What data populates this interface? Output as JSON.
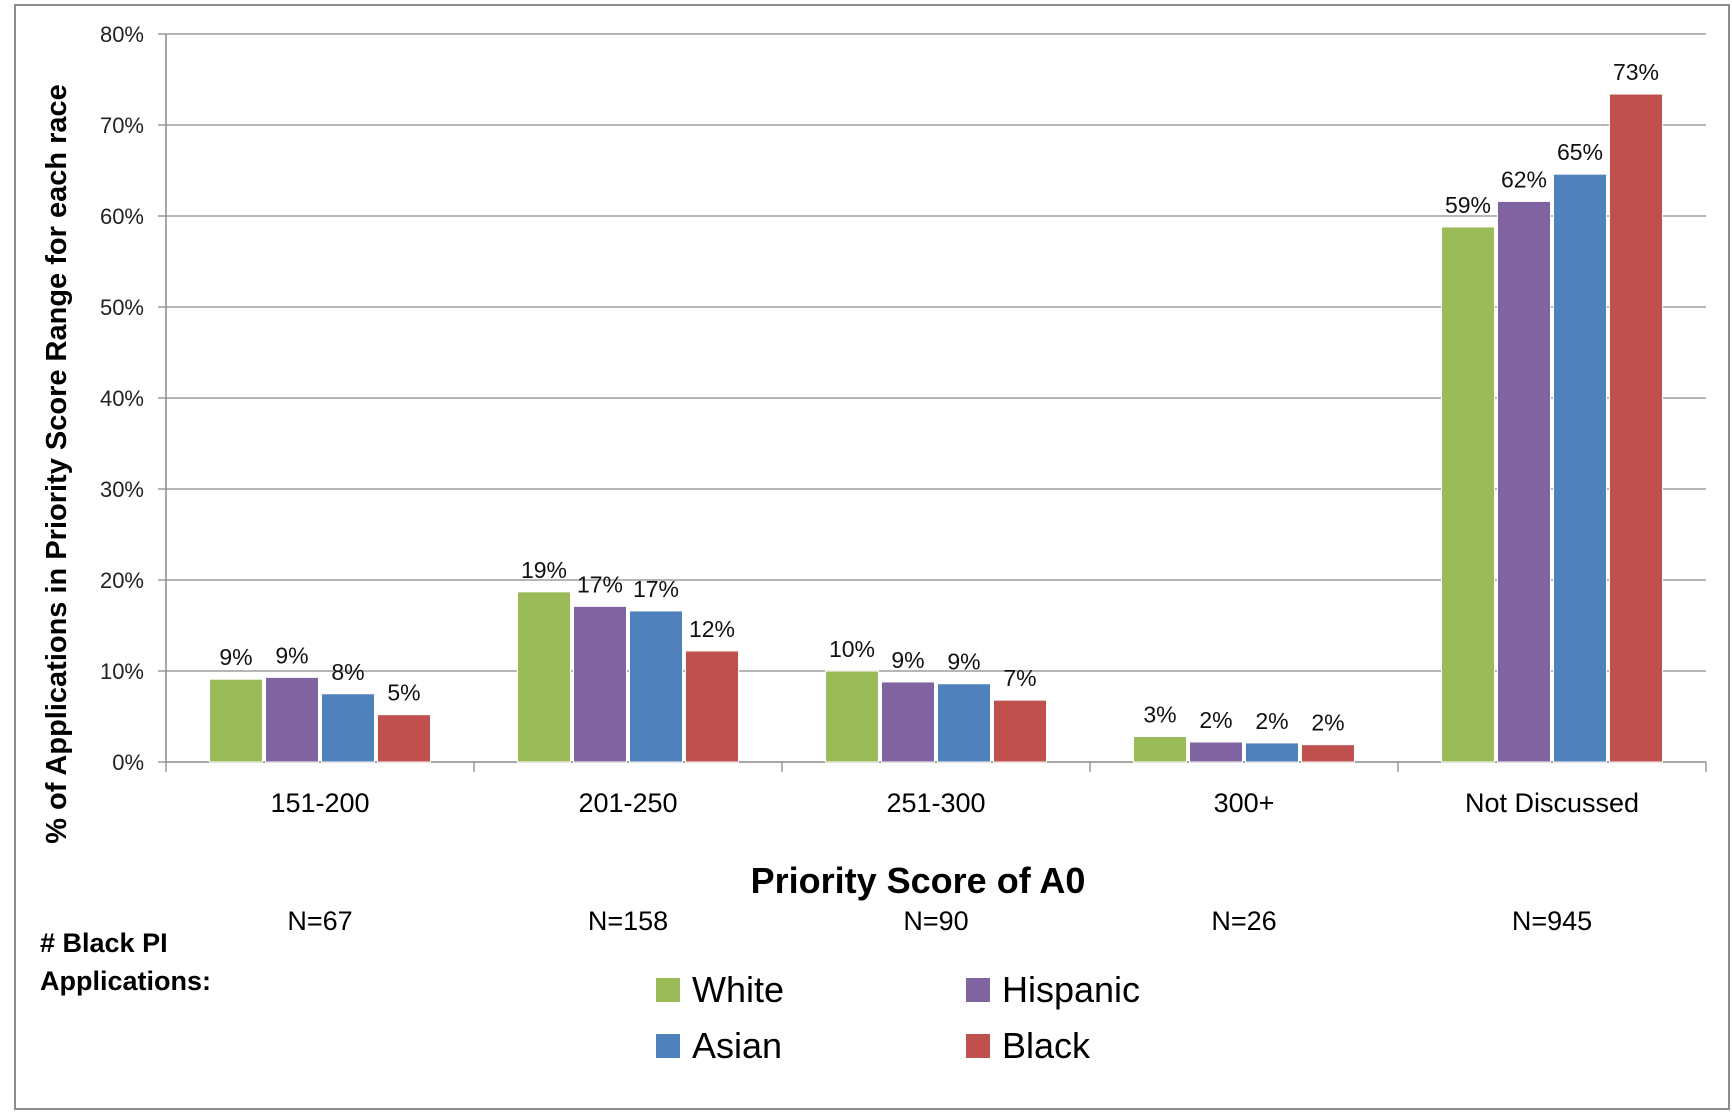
{
  "chart_data": {
    "type": "bar",
    "xlabel": "Priority Score of A0",
    "ylabel": "% of Applications  in Priority Score Range for each race",
    "ylim": [
      0,
      80
    ],
    "yticks": [
      "0%",
      "10%",
      "20%",
      "30%",
      "40%",
      "50%",
      "60%",
      "70%",
      "80%"
    ],
    "categories": [
      "151-200",
      "201-250",
      "251-300",
      "300+",
      "Not Discussed"
    ],
    "series": [
      {
        "name": "White",
        "color": "#9bbb59",
        "values": [
          9.1,
          18.7,
          10.0,
          2.8,
          58.8
        ],
        "labels": [
          "9%",
          "19%",
          "10%",
          "3%",
          "59%"
        ]
      },
      {
        "name": "Hispanic",
        "color": "#8064a2",
        "values": [
          9.3,
          17.1,
          8.8,
          2.2,
          61.6
        ],
        "labels": [
          "9%",
          "17%",
          "9%",
          "2%",
          "62%"
        ]
      },
      {
        "name": "Asian",
        "color": "#4f81bd",
        "values": [
          7.5,
          16.6,
          8.6,
          2.1,
          64.6
        ],
        "labels": [
          "8%",
          "17%",
          "9%",
          "2%",
          "65%"
        ]
      },
      {
        "name": "Black",
        "color": "#c0504d",
        "values": [
          5.2,
          12.2,
          6.8,
          1.9,
          73.4
        ],
        "labels": [
          "5%",
          "12%",
          "7%",
          "2%",
          "73%"
        ]
      }
    ],
    "n_counts": [
      "N=67",
      "N=158",
      "N=90",
      "N=26",
      "N=945"
    ],
    "n_row_label": [
      "# Black PI",
      "Applications:"
    ],
    "legend_position": "bottom",
    "grid": true
  }
}
